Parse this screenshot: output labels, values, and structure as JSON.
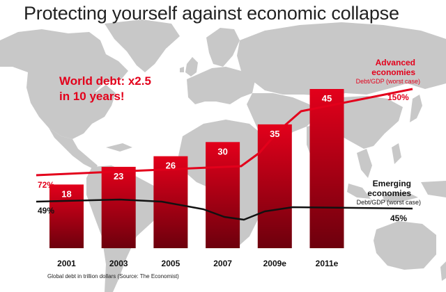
{
  "title": "Protecting yourself against economic collapse",
  "callout": [
    "World debt: x2.5",
    "in 10 years!"
  ],
  "source": "Global debt in trillion dollars (Source: The Economist)",
  "colors": {
    "bar_top": "#e3001b",
    "bar_bottom": "#6d000d",
    "advanced_line": "#e3001b",
    "emerging_line": "#111111",
    "map": "#c8c8c8"
  },
  "chart_data": {
    "type": "bar",
    "categories": [
      "2001",
      "2003",
      "2005",
      "2007",
      "2009e",
      "2011e"
    ],
    "values": [
      18,
      23,
      26,
      30,
      35,
      45
    ],
    "unit": "trillion dollars",
    "ylim": [
      0,
      45
    ],
    "grid": false,
    "lines": [
      {
        "name": "Advanced economies",
        "subtitle": "Debt/GDP (worst case)",
        "start_label": "72%",
        "end_label": "150%",
        "start": 72,
        "end": 150,
        "color": "#e3001b"
      },
      {
        "name": "Emerging economies",
        "subtitle": "Debt/GDP (worst case)",
        "start_label": "49%",
        "end_label": "45%",
        "start": 49,
        "end": 45,
        "color": "#111111"
      }
    ]
  }
}
